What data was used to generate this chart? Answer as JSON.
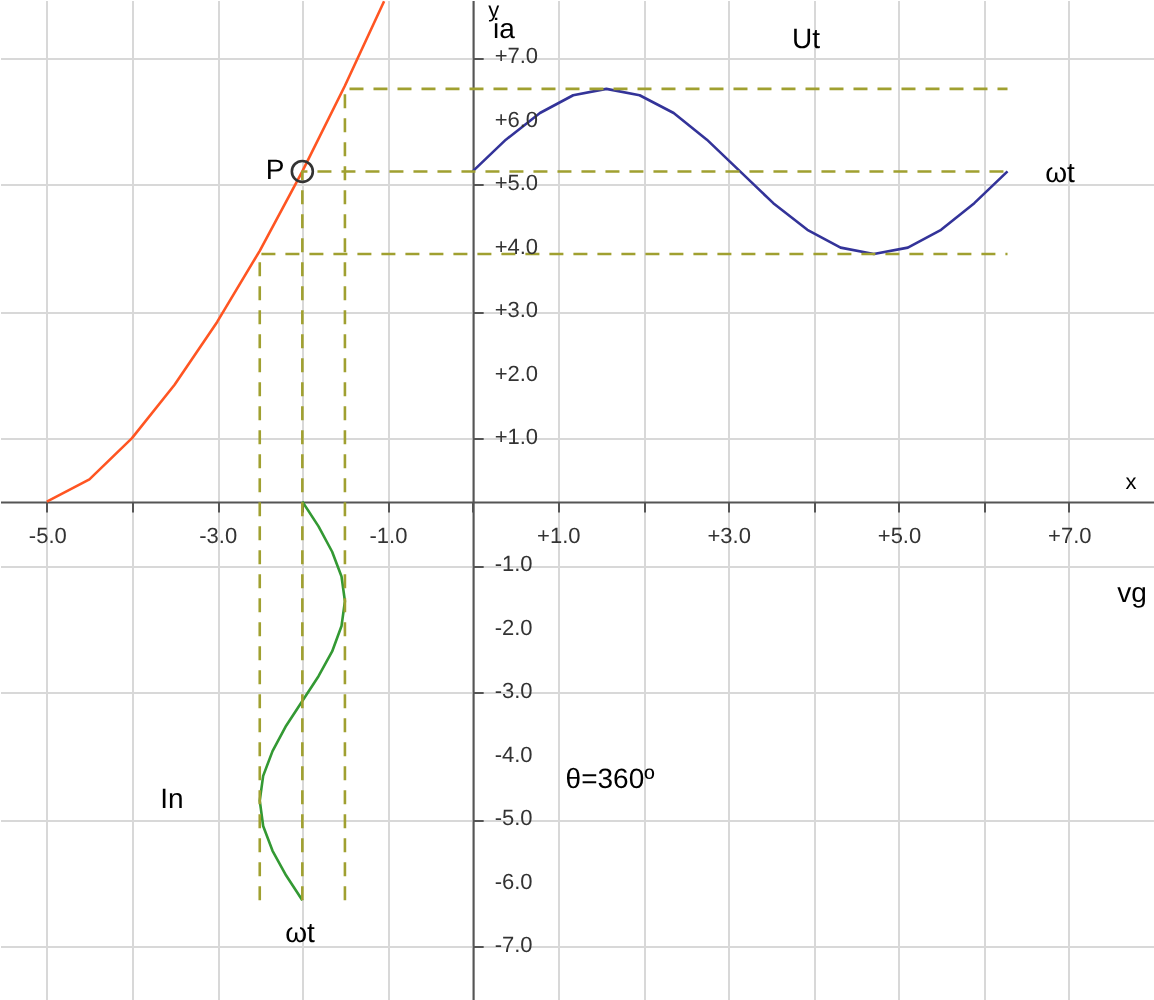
{
  "chart_data": {
    "type": "line",
    "xlabel": "x",
    "ylabel": "y",
    "xlim": [
      -5.55,
      8.0
    ],
    "ylim": [
      -7.85,
      7.9
    ],
    "xticks": [
      {
        "value": -5,
        "label": "-5.0"
      },
      {
        "value": -4,
        "label": null
      },
      {
        "value": -3,
        "label": "-3.0"
      },
      {
        "value": -2,
        "label": null
      },
      {
        "value": -1,
        "label": "-1.0"
      },
      {
        "value": 0,
        "label": null
      },
      {
        "value": 1,
        "label": "+1.0"
      },
      {
        "value": 2,
        "label": null
      },
      {
        "value": 3,
        "label": "+3.0"
      },
      {
        "value": 4,
        "label": null
      },
      {
        "value": 5,
        "label": "+5.0"
      },
      {
        "value": 6,
        "label": null
      },
      {
        "value": 7,
        "label": "+7.0"
      },
      {
        "value": 8,
        "label": null
      }
    ],
    "yticks": [
      {
        "value": -7,
        "label": "-7.0"
      },
      {
        "value": -6,
        "label": "-6.0"
      },
      {
        "value": -5,
        "label": "-5.0"
      },
      {
        "value": -4,
        "label": "-4.0"
      },
      {
        "value": -3,
        "label": "-3.0"
      },
      {
        "value": -2,
        "label": "-2.0"
      },
      {
        "value": -1,
        "label": "-1.0"
      },
      {
        "value": 0,
        "label": null
      },
      {
        "value": 1,
        "label": "+1.0"
      },
      {
        "value": 2,
        "label": "+2.0"
      },
      {
        "value": 3,
        "label": "+3.0"
      },
      {
        "value": 4,
        "label": "+4.0"
      },
      {
        "value": 5,
        "label": "+5.0"
      },
      {
        "value": 6,
        "label": "+6.0"
      },
      {
        "value": 7,
        "label": "+7.0"
      }
    ],
    "grid": true,
    "series": [
      {
        "color": "#ff5522",
        "x": [
          -5,
          -4.5,
          -4,
          -3.5,
          -3,
          -2.5,
          -2,
          -1.5,
          -1.04
        ],
        "values": [
          0,
          0.35,
          1,
          1.84,
          2.83,
          3.95,
          5.2,
          6.55,
          7.88
        ]
      },
      {
        "type": "line",
        "color": "#333399",
        "x": [
          0,
          0.39,
          0.79,
          1.18,
          1.57,
          1.96,
          2.36,
          2.75,
          3.14,
          3.53,
          3.93,
          4.32,
          4.71,
          5.11,
          5.5,
          5.89,
          6.28
        ],
        "values": [
          5.2,
          5.7,
          6.12,
          6.4,
          6.5,
          6.4,
          6.12,
          5.7,
          5.2,
          4.7,
          4.28,
          4.0,
          3.9,
          4.0,
          4.28,
          4.7,
          5.2
        ]
      },
      {
        "type": "line",
        "color": "#339933",
        "x": [
          -2,
          -1.81,
          -1.65,
          -1.54,
          -1.5,
          -1.54,
          -1.65,
          -1.81,
          -2,
          -2.19,
          -2.35,
          -2.46,
          -2.5,
          -2.46,
          -2.35,
          -2.19,
          -2
        ],
        "values": [
          0,
          -0.39,
          -0.79,
          -1.18,
          -1.57,
          -1.96,
          -2.36,
          -2.75,
          -3.14,
          -3.53,
          -3.93,
          -4.32,
          -4.71,
          -5.11,
          -5.5,
          -5.89,
          -6.28
        ]
      },
      {
        "type": "line",
        "color": "#a0a030",
        "line_style": "dashed",
        "x": [
          -2.5,
          -2.5,
          6.28
        ],
        "values": [
          -6.28,
          3.9,
          3.9
        ]
      },
      {
        "type": "line",
        "color": "#a0a030",
        "line_style": "dashed",
        "x": [
          -2,
          -2,
          6.28
        ],
        "values": [
          -6.28,
          5.2,
          5.2
        ]
      },
      {
        "type": "line",
        "color": "#a0a030",
        "line_style": "dashed",
        "x": [
          -1.5,
          -1.5,
          6.28
        ],
        "values": [
          -6.28,
          6.5,
          6.5
        ]
      },
      {
        "type": "scatter",
        "name": "P",
        "color": "#333333",
        "marker": "circle",
        "x": [
          -2
        ],
        "values": [
          5.2
        ]
      }
    ],
    "annotations": [
      "ia",
      "Ut",
      "ωt",
      "vg",
      "In",
      "θ=360º",
      "ωt"
    ]
  }
}
